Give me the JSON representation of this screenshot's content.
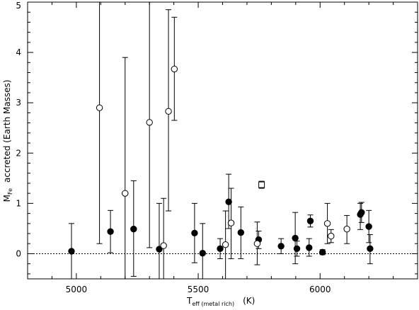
{
  "chart_data": {
    "type": "scatter",
    "title": "",
    "xlabel": {
      "main": "T",
      "sub": "eff (metal rich)",
      "units": "(K)"
    },
    "ylabel": {
      "main": "M",
      "sub": "Fe",
      "rest": "accreted (Earth Masses)"
    },
    "xlim": [
      4800,
      6400
    ],
    "ylim": [
      -0.5,
      5
    ],
    "xticks": [
      5000,
      5500,
      6000
    ],
    "xtick_labels": [
      "5000",
      "5500",
      "6000"
    ],
    "yticks": [
      0,
      1,
      2,
      3,
      4,
      5
    ],
    "ytick_labels": [
      "0",
      "1",
      "2",
      "3",
      "4",
      "5"
    ],
    "x_minor_step": 100,
    "y_minor_step": 0.2,
    "grid": false,
    "reference_line": {
      "y": 0,
      "style": "dotted"
    },
    "series": [
      {
        "marker": "filled-circle",
        "points": [
          {
            "x": 4980,
            "y": 0.05,
            "lo": -0.6,
            "hi": 0.6
          },
          {
            "x": 5140,
            "y": 0.44,
            "lo": 0.02,
            "hi": 0.86
          },
          {
            "x": 5235,
            "y": 0.49,
            "lo": -0.45,
            "hi": 1.45
          },
          {
            "x": 5340,
            "y": 0.09,
            "lo": -0.8,
            "hi": 1.0
          },
          {
            "x": 5485,
            "y": 0.41,
            "lo": -0.18,
            "hi": 1.0
          },
          {
            "x": 5518,
            "y": 0.01,
            "lo": -0.6,
            "hi": 0.6
          },
          {
            "x": 5590,
            "y": 0.1,
            "lo": -0.1,
            "hi": 0.3
          },
          {
            "x": 5625,
            "y": 1.03,
            "lo": 0.5,
            "hi": 1.58
          },
          {
            "x": 5675,
            "y": 0.42,
            "lo": -0.1,
            "hi": 0.93
          },
          {
            "x": 5748,
            "y": 0.28,
            "lo": 0.1,
            "hi": 0.45
          },
          {
            "x": 5840,
            "y": 0.15,
            "lo": 0.0,
            "hi": 0.3
          },
          {
            "x": 5898,
            "y": 0.31,
            "lo": -0.2,
            "hi": 0.82
          },
          {
            "x": 5905,
            "y": 0.1,
            "lo": -0.05,
            "hi": 0.25
          },
          {
            "x": 5955,
            "y": 0.12,
            "lo": -0.05,
            "hi": 0.3
          },
          {
            "x": 5960,
            "y": 0.65,
            "lo": 0.53,
            "hi": 0.77
          },
          {
            "x": 6010,
            "y": 0.03,
            "lo": -0.02,
            "hi": 0.08
          },
          {
            "x": 6165,
            "y": 0.78,
            "lo": 0.48,
            "hi": 1.0
          },
          {
            "x": 6170,
            "y": 0.82,
            "lo": 0.62,
            "hi": 1.02
          },
          {
            "x": 6200,
            "y": 0.54,
            "lo": 0.22,
            "hi": 0.86
          },
          {
            "x": 6205,
            "y": 0.1,
            "lo": -0.2,
            "hi": 0.38
          }
        ]
      },
      {
        "marker": "open-circle",
        "points": [
          {
            "x": 5095,
            "y": 2.9,
            "lo": 0.2,
            "hi": 5.5
          },
          {
            "x": 5200,
            "y": 1.2,
            "lo": -0.5,
            "hi": 3.9
          },
          {
            "x": 5300,
            "y": 2.61,
            "lo": 0.12,
            "hi": 5.5
          },
          {
            "x": 5358,
            "y": 0.16,
            "lo": -0.8,
            "hi": 1.1
          },
          {
            "x": 5378,
            "y": 2.83,
            "lo": 0.85,
            "hi": 4.85
          },
          {
            "x": 5402,
            "y": 3.67,
            "lo": 2.65,
            "hi": 4.7
          },
          {
            "x": 5612,
            "y": 0.18,
            "lo": -0.5,
            "hi": 0.85
          },
          {
            "x": 5635,
            "y": 0.61,
            "lo": -0.1,
            "hi": 1.3
          },
          {
            "x": 5742,
            "y": 0.2,
            "lo": -0.22,
            "hi": 0.63
          },
          {
            "x": 6030,
            "y": 0.6,
            "lo": 0.2,
            "hi": 1.0
          },
          {
            "x": 6045,
            "y": 0.35,
            "lo": 0.22,
            "hi": 0.48
          },
          {
            "x": 6110,
            "y": 0.49,
            "lo": 0.2,
            "hi": 0.76
          }
        ]
      },
      {
        "marker": "open-square",
        "points": [
          {
            "x": 5760,
            "y": 1.37,
            "lo": 1.3,
            "hi": 1.44
          }
        ]
      }
    ]
  }
}
